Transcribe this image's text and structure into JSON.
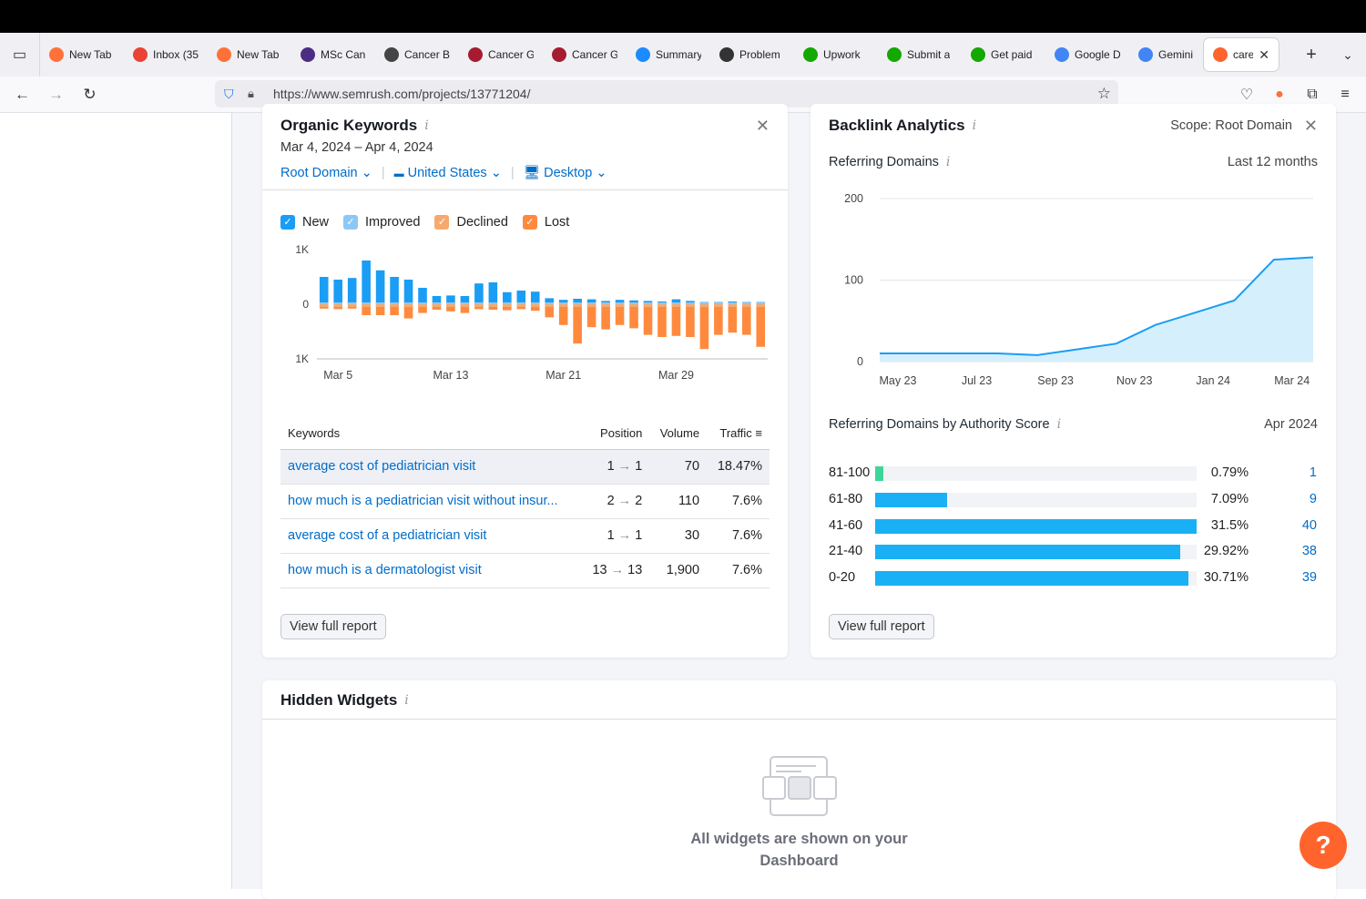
{
  "tabs": [
    {
      "label": "New Tab",
      "favicon": "firefox-icon",
      "color": "#ff7139"
    },
    {
      "label": "Inbox (35",
      "favicon": "gmail-icon",
      "color": "#ea4335"
    },
    {
      "label": "New Tab",
      "favicon": "firefox-icon",
      "color": "#ff7139"
    },
    {
      "label": "MSc Can",
      "favicon": "m-logo-icon",
      "color": "#4b2e83"
    },
    {
      "label": "Cancer B",
      "favicon": "skull-icon",
      "color": "#444444"
    },
    {
      "label": "Cancer G",
      "favicon": "shield-crest-icon",
      "color": "#a51c30"
    },
    {
      "label": "Cancer G",
      "favicon": "crest-icon",
      "color": "#a51c30"
    },
    {
      "label": "Summary",
      "favicon": "c-logo-icon",
      "color": "#1a8cff"
    },
    {
      "label": "Problem",
      "favicon": "info-circle-icon",
      "color": "#333333"
    },
    {
      "label": "Upwork",
      "favicon": "upwork-icon",
      "color": "#14a800"
    },
    {
      "label": "Submit a",
      "favicon": "upwork-icon",
      "color": "#14a800"
    },
    {
      "label": "Get paid",
      "favicon": "upwork-icon",
      "color": "#14a800"
    },
    {
      "label": "Google D",
      "favicon": "docs-icon",
      "color": "#4285f4"
    },
    {
      "label": "Gemini",
      "favicon": "gemini-icon",
      "color": "#4285f4"
    },
    {
      "label": "careb",
      "favicon": "semrush-icon",
      "color": "#ff642d",
      "active": true
    }
  ],
  "url": "https://www.semrush.com/projects/13771204/",
  "organic": {
    "title": "Organic Keywords",
    "date_range": "Mar 4, 2024 – Apr 4, 2024",
    "filters": {
      "domain": "Root Domain",
      "country": "United States",
      "device": "Desktop"
    },
    "legend": [
      {
        "label": "New",
        "color": "#1a9df5"
      },
      {
        "label": "Improved",
        "color": "#8cc8f5"
      },
      {
        "label": "Declined",
        "color": "#f7a96d"
      },
      {
        "label": "Lost",
        "color": "#ff8a3d"
      }
    ],
    "y_ticks": {
      "top": "1K",
      "mid": "0",
      "bottom": "1K"
    },
    "x_ticks": [
      "Mar 5",
      "Mar 13",
      "Mar 21",
      "Mar 29"
    ],
    "table": {
      "headers": {
        "keywords": "Keywords",
        "position": "Position",
        "volume": "Volume",
        "traffic": "Traffic"
      },
      "rows": [
        {
          "keyword": "average cost of pediatrician visit",
          "from": "1",
          "to": "1",
          "volume": "70",
          "traffic": "18.47%"
        },
        {
          "keyword": "how much is a pediatrician visit without insur...",
          "from": "2",
          "to": "2",
          "volume": "110",
          "traffic": "7.6%"
        },
        {
          "keyword": "average cost of a pediatrician visit",
          "from": "1",
          "to": "1",
          "volume": "30",
          "traffic": "7.6%"
        },
        {
          "keyword": "how much is a dermatologist visit",
          "from": "13",
          "to": "13",
          "volume": "1,900",
          "traffic": "7.6%"
        }
      ]
    },
    "button": "View full report"
  },
  "backlink": {
    "title": "Backlink Analytics",
    "scope": "Scope: Root Domain",
    "ref_domains_title": "Referring Domains",
    "period": "Last 12 months",
    "y_ticks": [
      "200",
      "100",
      "0"
    ],
    "x_ticks": [
      "May 23",
      "Jul 23",
      "Sep 23",
      "Nov 23",
      "Jan 24",
      "Mar 24"
    ],
    "authority_title": "Referring Domains by Authority Score",
    "authority_date": "Apr 2024",
    "authority_rows": [
      {
        "range": "81-100",
        "pct": "0.79%",
        "count": "1",
        "fraction": 0.025,
        "color": "#3ed59b"
      },
      {
        "range": "61-80",
        "pct": "7.09%",
        "count": "9",
        "fraction": 0.225,
        "color": "#1ab0f5"
      },
      {
        "range": "41-60",
        "pct": "31.5%",
        "count": "40",
        "fraction": 1.0,
        "color": "#1ab0f5"
      },
      {
        "range": "21-40",
        "pct": "29.92%",
        "count": "38",
        "fraction": 0.95,
        "color": "#1ab0f5"
      },
      {
        "range": "0-20",
        "pct": "30.71%",
        "count": "39",
        "fraction": 0.975,
        "color": "#1ab0f5"
      }
    ],
    "button": "View full report"
  },
  "hidden": {
    "title": "Hidden Widgets",
    "message_line1": "All widgets are shown on your",
    "message_line2": "Dashboard"
  },
  "help_label": "?",
  "chart_data": [
    {
      "type": "bar",
      "ylabel": "",
      "ylim": [
        -1000,
        1000
      ],
      "categories": [
        "Mar 4",
        "Mar 5",
        "Mar 6",
        "Mar 7",
        "Mar 8",
        "Mar 9",
        "Mar 10",
        "Mar 11",
        "Mar 12",
        "Mar 13",
        "Mar 14",
        "Mar 15",
        "Mar 16",
        "Mar 17",
        "Mar 18",
        "Mar 19",
        "Mar 20",
        "Mar 21",
        "Mar 22",
        "Mar 23",
        "Mar 24",
        "Mar 25",
        "Mar 26",
        "Mar 27",
        "Mar 28",
        "Mar 29",
        "Mar 30",
        "Mar 31",
        "Apr 1",
        "Apr 2",
        "Apr 3",
        "Apr 4"
      ],
      "series": [
        {
          "name": "New",
          "values": [
            500,
            450,
            480,
            800,
            620,
            500,
            450,
            300,
            150,
            160,
            150,
            380,
            400,
            220,
            250,
            230,
            110,
            80,
            100,
            90,
            60,
            80,
            70,
            60,
            50,
            90,
            60,
            40,
            40,
            50,
            40,
            40
          ]
        },
        {
          "name": "Declined",
          "values": [
            -80,
            -90,
            -80,
            -200,
            -200,
            -200,
            -260,
            -160,
            -100,
            -130,
            -160,
            -90,
            -100,
            -110,
            -90,
            -120,
            -240,
            -380,
            -720,
            -420,
            -460,
            -380,
            -440,
            -560,
            -600,
            -580,
            -600,
            -820,
            -560,
            -520,
            -560,
            -780
          ]
        }
      ]
    },
    {
      "type": "area",
      "ylim": [
        0,
        200
      ],
      "x": [
        "May 23",
        "Jun 23",
        "Jul 23",
        "Aug 23",
        "Sep 23",
        "Oct 23",
        "Nov 23",
        "Dec 23",
        "Jan 24",
        "Feb 24",
        "Mar 24",
        "Apr 24"
      ],
      "series": [
        {
          "values": [
            10,
            10,
            10,
            10,
            8,
            15,
            22,
            45,
            60,
            75,
            125,
            128
          ]
        }
      ]
    }
  ]
}
